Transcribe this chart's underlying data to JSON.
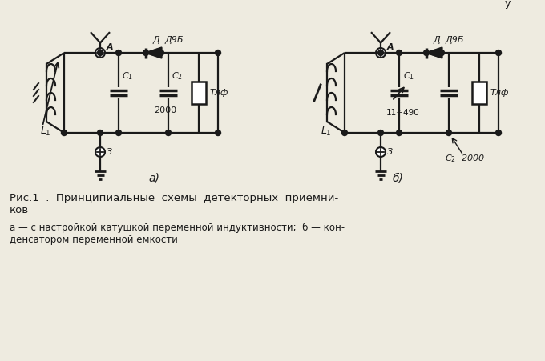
{
  "bg_color": "#eeebe0",
  "line_color": "#1a1a1a",
  "title_line1": "Рис.1  .  Принципиальные  схемы  детекторных  приемни-",
  "title_line2": "ков",
  "subtitle_line1": "а — с настройкой катушкой переменной индуктивности;  б — кон-",
  "subtitle_line2": "денсатором переменной емкости",
  "label_a": "а)",
  "label_b": "б)",
  "top_right_text": "у"
}
